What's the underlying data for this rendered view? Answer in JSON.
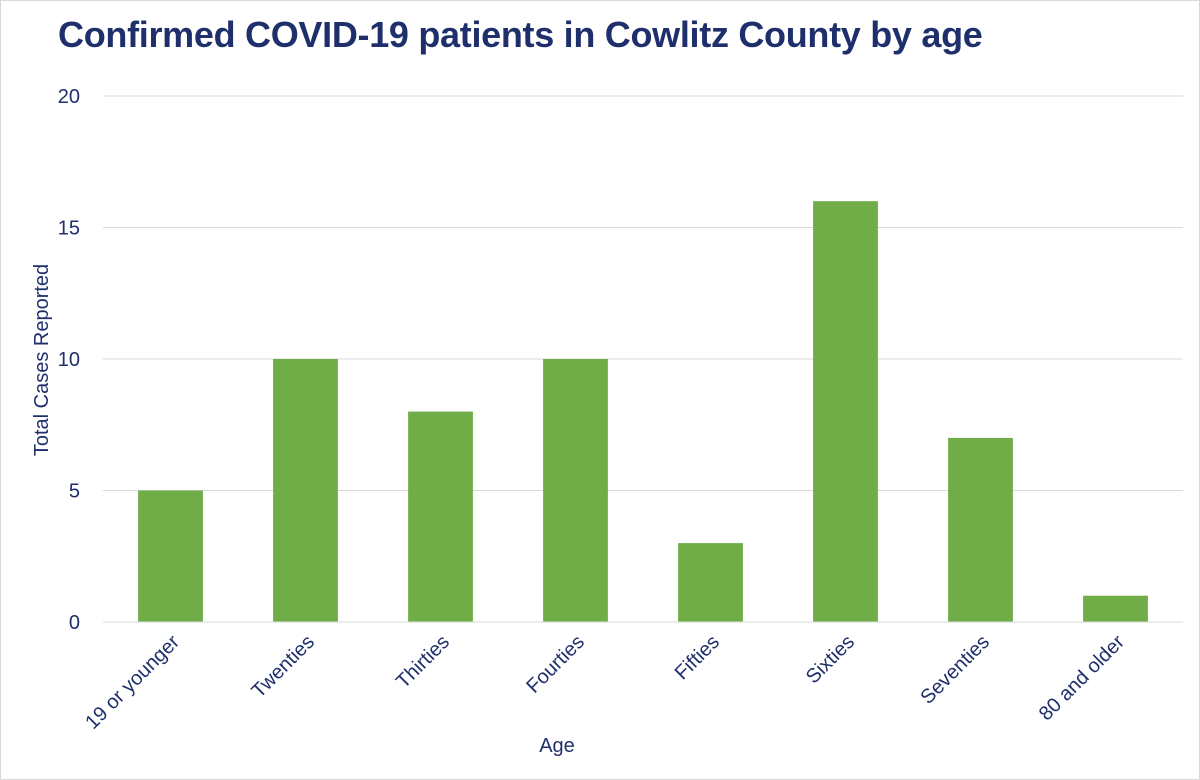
{
  "chart_data": {
    "type": "bar",
    "title": "Confirmed COVID-19 patients in Cowlitz County by age",
    "xlabel": "Age",
    "ylabel": "Total Cases Reported",
    "categories": [
      "19 or younger",
      "Twenties",
      "Thirties",
      "Fourties",
      "Fifties",
      "Sixties",
      "Seventies",
      "80 and older"
    ],
    "values": [
      5,
      10,
      8,
      10,
      3,
      16,
      7,
      1
    ],
    "ylim": [
      0,
      20
    ],
    "yticks": [
      "0",
      "5",
      "10",
      "15",
      "20"
    ],
    "grid": true,
    "bar_color": "#70ad47",
    "text_color": "#1f2f6b",
    "grid_color": "#d9d9d9"
  }
}
